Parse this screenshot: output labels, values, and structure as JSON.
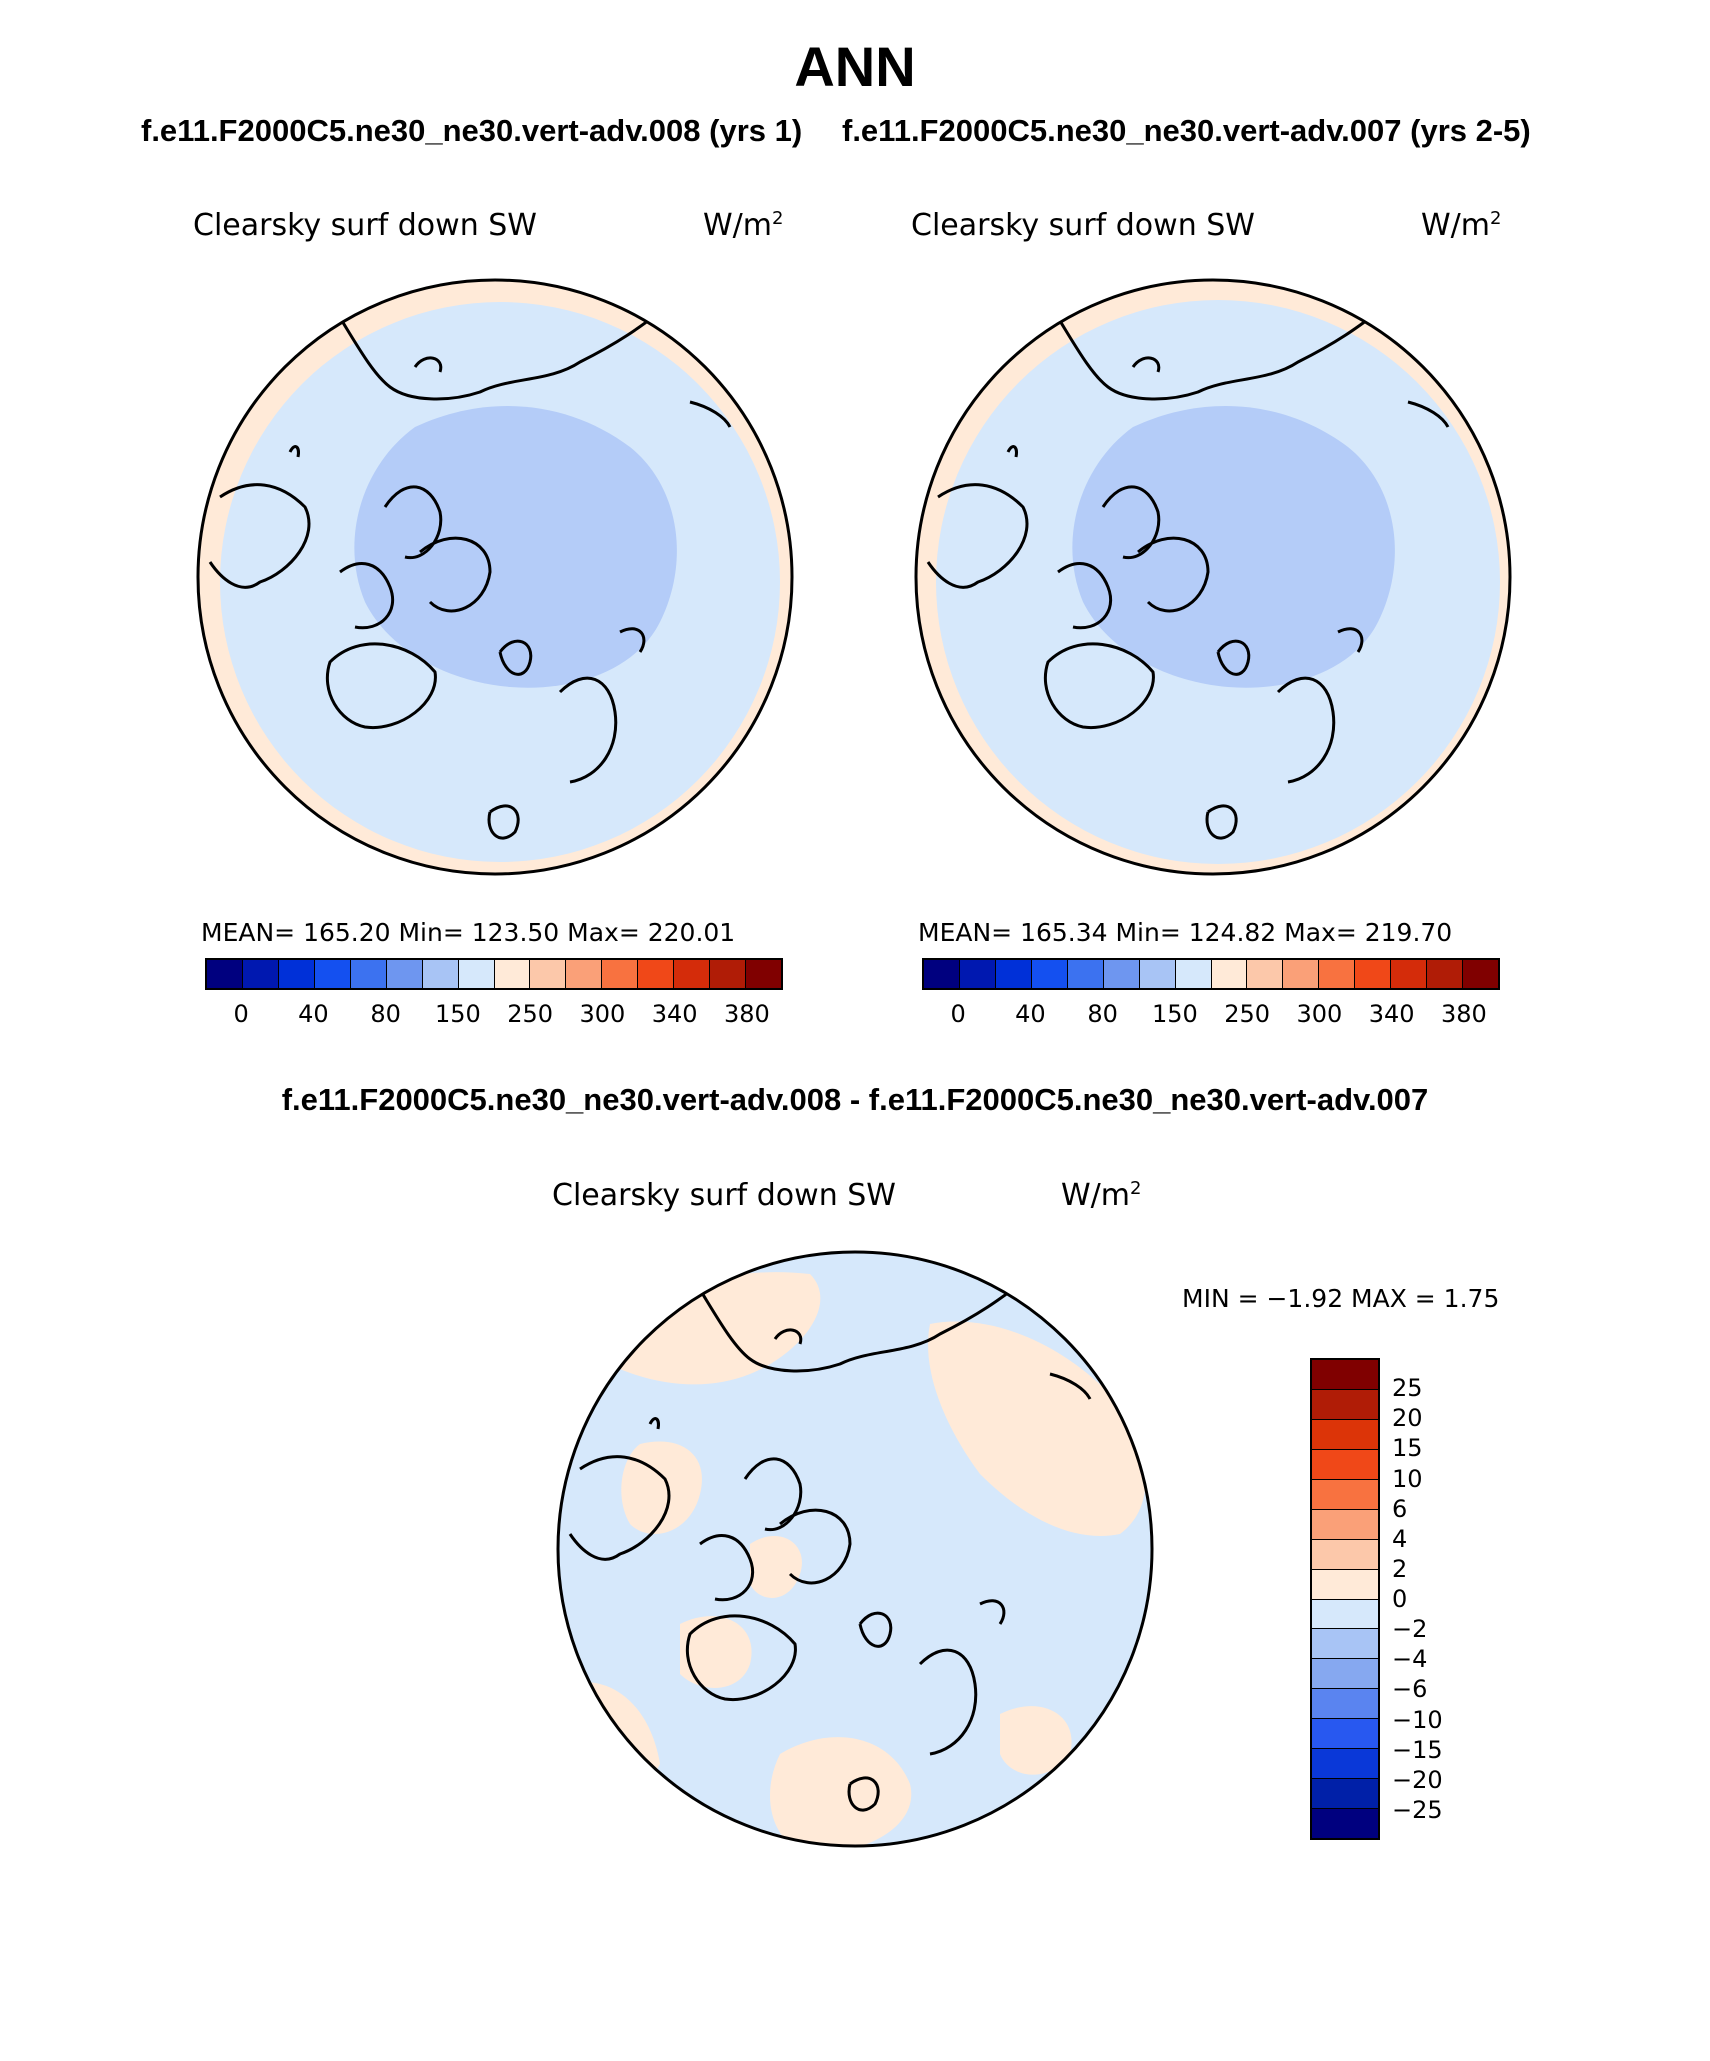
{
  "title": "ANN",
  "subtitle_left": "f.e11.F2000C5.ne30_ne30.vert-adv.008 (yrs 1)",
  "subtitle_right": "f.e11.F2000C5.ne30_ne30.vert-adv.007 (yrs 2-5)",
  "diff_title": "f.e11.F2000C5.ne30_ne30.vert-adv.008 - f.e11.F2000C5.ne30_ne30.vert-adv.007",
  "panels": [
    {
      "field": "Clearsky surf down SW",
      "units": "W/m",
      "units_sup": "2",
      "stats": "MEAN= 165.20   Min= 123.50   Max= 220.01"
    },
    {
      "field": "Clearsky surf down SW",
      "units": "W/m",
      "units_sup": "2",
      "stats": "MEAN= 165.34   Min= 124.82   Max= 219.70"
    }
  ],
  "diff_panel": {
    "field": "Clearsky surf down SW",
    "units": "W/m",
    "units_sup": "2",
    "stats": "MIN =   −1.92 MAX =     1.75"
  },
  "colorbar_main": {
    "colors": [
      "#00007f",
      "#0018b0",
      "#0030d8",
      "#1450f0",
      "#3c72f0",
      "#6e96f0",
      "#a8c4f5",
      "#d6e8fb",
      "#ffead8",
      "#fcc8aa",
      "#faa078",
      "#f87240",
      "#f04818",
      "#d42c0a",
      "#b01c06",
      "#800000"
    ],
    "tick_labels": [
      "0",
      "40",
      "80",
      "150",
      "250",
      "300",
      "340",
      "380"
    ]
  },
  "colorbar_diff": {
    "colors": [
      "#800000",
      "#b01c06",
      "#dc3408",
      "#f04818",
      "#f87240",
      "#faa078",
      "#fcc8aa",
      "#ffead8",
      "#d6e8fb",
      "#a8c4f5",
      "#86a8f0",
      "#5a84f0",
      "#2858f0",
      "#0a38d8",
      "#0020a8",
      "#00007f"
    ],
    "tick_labels": [
      "25",
      "20",
      "15",
      "10",
      "6",
      "4",
      "2",
      "0",
      "−2",
      "−4",
      "−6",
      "−10",
      "−15",
      "−20",
      "−25"
    ]
  },
  "map_colors": {
    "warm": "#ffead8",
    "pale_blue": "#d6e8fb",
    "mid_blue": "#b4ccf8",
    "coast": "#000000"
  }
}
